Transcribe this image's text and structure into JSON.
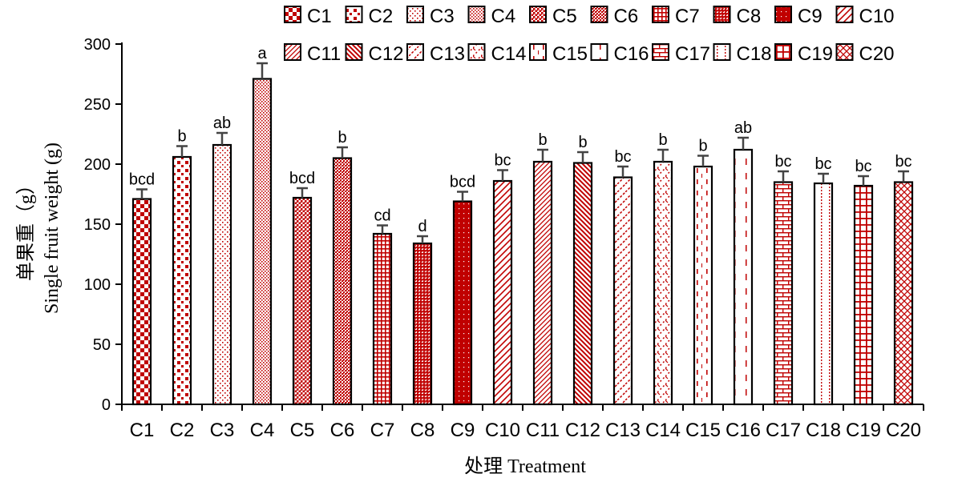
{
  "chart_data": {
    "type": "bar",
    "title": "",
    "xlabel": "处理 Treatment",
    "ylabel_cn": "单果重（g）",
    "ylabel": "Single fruit weight (g)",
    "ylim": [
      0,
      300
    ],
    "yticks": [
      0,
      50,
      100,
      150,
      200,
      250,
      300
    ],
    "grid": false,
    "legend_position": "top",
    "categories": [
      "C1",
      "C2",
      "C3",
      "C4",
      "C5",
      "C6",
      "C7",
      "C8",
      "C9",
      "C10",
      "C11",
      "C12",
      "C13",
      "C14",
      "C15",
      "C16",
      "C17",
      "C18",
      "C19",
      "C20"
    ],
    "values": [
      171,
      206,
      216,
      271,
      172,
      205,
      142,
      134,
      169,
      186,
      202,
      201,
      189,
      202,
      198,
      212,
      185,
      184,
      182,
      185
    ],
    "errors": [
      8,
      9,
      10,
      13,
      8,
      9,
      7,
      6,
      8,
      9,
      10,
      9,
      9,
      10,
      9,
      10,
      9,
      8,
      8,
      9
    ],
    "significance": [
      "bcd",
      "b",
      "ab",
      "a",
      "bcd",
      "b",
      "cd",
      "d",
      "bcd",
      "bc",
      "b",
      "b",
      "bc",
      "b",
      "b",
      "ab",
      "bc",
      "bc",
      "bc",
      "bc"
    ],
    "colors": {
      "bar_fill": "#c00000",
      "bar_edge": "#000000",
      "error_bar": "#444444",
      "axis": "#000000"
    },
    "patterns": [
      "checker",
      "dots-large",
      "dots-fine",
      "dots-dense",
      "crosshatch-fine",
      "crosshatch-dense",
      "grid-fine",
      "grid-tight",
      "solid-red",
      "diag-right",
      "diag-right-fine",
      "diag-left",
      "diag-dash",
      "zigzag",
      "dash-vertical",
      "dash-vertical-sparse",
      "brick",
      "dot-vertical",
      "grid",
      "diag-cross"
    ]
  }
}
